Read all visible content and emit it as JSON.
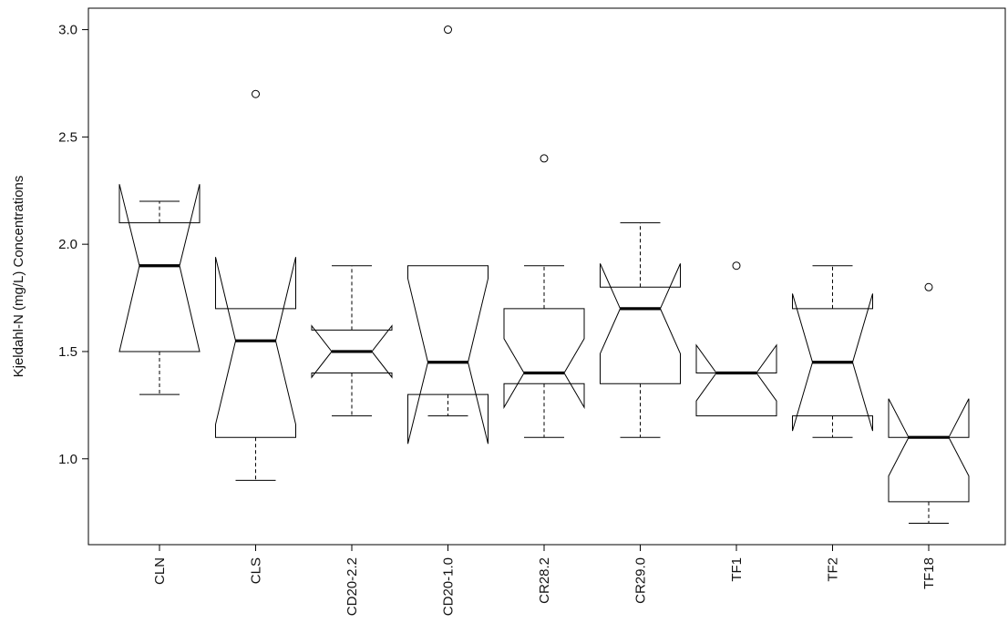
{
  "chart_data": {
    "type": "boxplot",
    "notched": true,
    "title": "",
    "xlabel": "",
    "ylabel": "Kjeldahl-N (mg/L) Concentrations",
    "ylim": [
      0.6,
      3.1
    ],
    "yticks": [
      1.0,
      1.5,
      2.0,
      2.5,
      3.0
    ],
    "ytick_labels": [
      "1.0",
      "1.5",
      "2.0",
      "2.5",
      "3.0"
    ],
    "grid": false,
    "categories": [
      "CLN",
      "CLS",
      "CD20-2.2",
      "CD20-1.0",
      "CR28.2",
      "CR29.0",
      "TF1",
      "TF2",
      "TF18"
    ],
    "boxes": [
      {
        "label": "CLN",
        "whisker_low": 1.3,
        "q1": 1.5,
        "median": 1.9,
        "q3": 2.1,
        "whisker_high": 2.2,
        "notch_low": 1.5,
        "notch_high": 2.28,
        "outliers": []
      },
      {
        "label": "CLS",
        "whisker_low": 0.9,
        "q1": 1.1,
        "median": 1.55,
        "q3": 1.7,
        "whisker_high": 1.7,
        "notch_low": 1.16,
        "notch_high": 1.94,
        "outliers": [
          2.7
        ]
      },
      {
        "label": "CD20-2.2",
        "whisker_low": 1.2,
        "q1": 1.4,
        "median": 1.5,
        "q3": 1.6,
        "whisker_high": 1.9,
        "notch_low": 1.38,
        "notch_high": 1.62,
        "outliers": []
      },
      {
        "label": "CD20-1.0",
        "whisker_low": 1.2,
        "q1": 1.3,
        "median": 1.45,
        "q3": 1.9,
        "whisker_high": 1.9,
        "notch_low": 1.07,
        "notch_high": 1.84,
        "outliers": [
          3.0
        ]
      },
      {
        "label": "CR28.2",
        "whisker_low": 1.1,
        "q1": 1.35,
        "median": 1.4,
        "q3": 1.7,
        "whisker_high": 1.9,
        "notch_low": 1.24,
        "notch_high": 1.56,
        "outliers": [
          2.4
        ]
      },
      {
        "label": "CR29.0",
        "whisker_low": 1.1,
        "q1": 1.35,
        "median": 1.7,
        "q3": 1.8,
        "whisker_high": 2.1,
        "notch_low": 1.49,
        "notch_high": 1.91,
        "outliers": []
      },
      {
        "label": "TF1",
        "whisker_low": 1.2,
        "q1": 1.2,
        "median": 1.4,
        "q3": 1.4,
        "whisker_high": 1.4,
        "notch_low": 1.27,
        "notch_high": 1.53,
        "outliers": [
          1.9
        ]
      },
      {
        "label": "TF2",
        "whisker_low": 1.1,
        "q1": 1.2,
        "median": 1.45,
        "q3": 1.7,
        "whisker_high": 1.9,
        "notch_low": 1.13,
        "notch_high": 1.77,
        "outliers": []
      },
      {
        "label": "TF18",
        "whisker_low": 0.7,
        "q1": 0.8,
        "median": 1.1,
        "q3": 1.1,
        "whisker_high": 1.1,
        "notch_low": 0.92,
        "notch_high": 1.28,
        "outliers": [
          1.8
        ]
      }
    ]
  }
}
